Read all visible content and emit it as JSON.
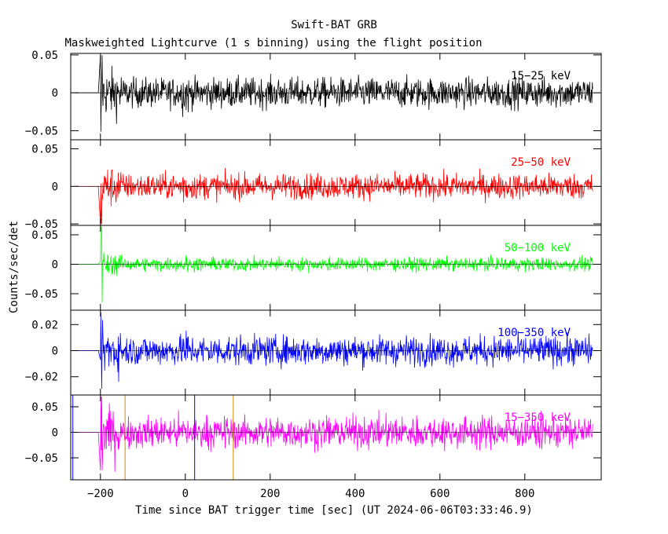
{
  "chart_data": {
    "type": "line",
    "title": "Swift-BAT GRB",
    "subtitle": "Maskweighted Lightcurve (1 s binning) using the flight position",
    "xlabel": "Time since BAT trigger time [sec] (UT 2024-06-06T03:33:46.9)",
    "ylabel": "Counts/sec/det",
    "xlim": [
      -270,
      980
    ],
    "x_ticks": [
      -200,
      0,
      200,
      400,
      600,
      800
    ],
    "data_x_range": [
      -200,
      960
    ],
    "vertical_markers": [
      {
        "x": -265,
        "color": "#0000ff"
      },
      {
        "x": -142,
        "color": "#cc8800"
      },
      {
        "x": 22,
        "color": "#0000ff"
      },
      {
        "x": 113,
        "color": "#cc8800"
      }
    ],
    "panels": [
      {
        "band": "15-25 keV",
        "label": "15−25 keV",
        "color": "#000000",
        "ylim": [
          -0.062,
          0.052
        ],
        "y_ticks": [
          0.05,
          0,
          -0.05
        ],
        "y_tick_labels": [
          "0.05",
          "0",
          "−0.05"
        ],
        "noise_amplitude": 0.014
      },
      {
        "band": "25-50 keV",
        "label": "25−50 keV",
        "color": "#ff0000",
        "ylim": [
          -0.052,
          0.062
        ],
        "y_ticks": [
          0.05,
          0,
          -0.05
        ],
        "y_tick_labels": [
          "0.05",
          "0",
          "−0.05"
        ],
        "noise_amplitude": 0.012
      },
      {
        "band": "50-100 keV",
        "label": "50−100 keV",
        "color": "#00ff00",
        "ylim": [
          -0.078,
          0.066
        ],
        "y_ticks": [
          0.05,
          0,
          -0.05
        ],
        "y_tick_labels": [
          "0.05",
          "0",
          "−0.05"
        ],
        "noise_amplitude": 0.008
      },
      {
        "band": "100-350 keV",
        "label": "100−350 keV",
        "color": "#0000ff",
        "ylim": [
          -0.034,
          0.031
        ],
        "y_ticks": [
          0.02,
          0,
          -0.02
        ],
        "y_tick_labels": [
          "0.02",
          "0",
          "−0.02"
        ],
        "noise_amplitude": 0.008
      },
      {
        "band": "15-350 keV",
        "label": "15−350 keV",
        "color": "#ff00ff",
        "ylim": [
          -0.093,
          0.073
        ],
        "y_ticks": [
          0.05,
          0,
          -0.05
        ],
        "y_tick_labels": [
          "0.05",
          "0",
          "−0.05"
        ],
        "noise_amplitude": 0.022
      }
    ]
  }
}
